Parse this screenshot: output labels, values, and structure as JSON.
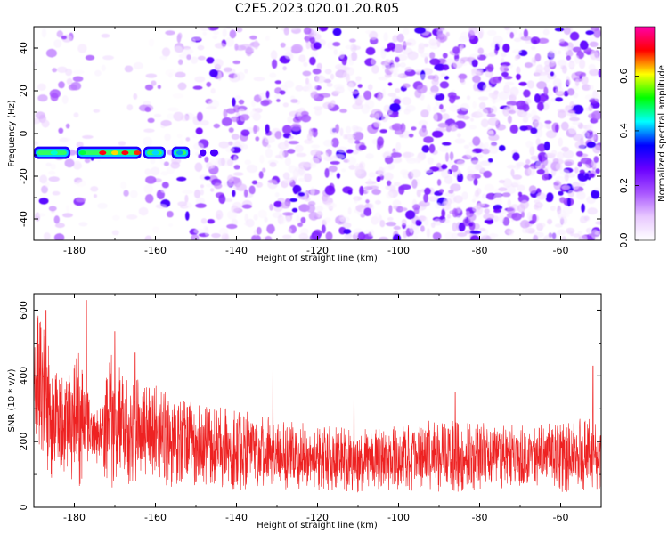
{
  "figure": {
    "title": "C2E5.2023.020.01.20.R05"
  },
  "chart_data": [
    {
      "type": "heatmap",
      "xlabel": "Height of straight line (km)",
      "ylabel": "Frequency (Hz)",
      "xlim": [
        -190,
        -50
      ],
      "ylim": [
        -50,
        50
      ],
      "xticks": [
        -180,
        -160,
        -140,
        -120,
        -100,
        -80,
        -60
      ],
      "yticks": [
        -40,
        -20,
        0,
        20,
        40
      ],
      "colorbar": {
        "label": "Normalized spectral amplitude",
        "range": [
          0.0,
          0.78
        ],
        "ticks": [
          0.0,
          0.2,
          0.4,
          0.6
        ],
        "colormap": [
          "#ffffff",
          "#e8c8ff",
          "#a855ff",
          "#6a00ff",
          "#0000ff",
          "#00ffff",
          "#00ff00",
          "#ffff00",
          "#ff0000",
          "#ff00aa"
        ]
      },
      "signal": {
        "x_range": [
          -190,
          -144
        ],
        "frequency": -9,
        "peak_amplitude": 0.7,
        "peak_x": [
          -172,
          -163
        ]
      },
      "background": {
        "quiet_x_range": [
          -178,
          -162
        ],
        "noise_amplitude": [
          0.02,
          0.3
        ]
      }
    },
    {
      "type": "line",
      "xlabel": "Height of straight line (km)",
      "ylabel": "SNR (10 * v/v)",
      "xlim": [
        -190,
        -50
      ],
      "ylim": [
        0,
        650
      ],
      "xticks": [
        -180,
        -160,
        -140,
        -120,
        -100,
        -80,
        -60
      ],
      "yticks": [
        0,
        200,
        400,
        600
      ],
      "series": [
        {
          "color": "#ee2222",
          "profile_x": [
            -190,
            -188,
            -185,
            -182,
            -179,
            -176,
            -174,
            -172,
            -170,
            -168,
            -166,
            -164,
            -160,
            -156,
            -150,
            -140,
            -130,
            -120,
            -110,
            -100,
            -90,
            -80,
            -70,
            -60,
            -50
          ],
          "profile_upper": [
            620,
            580,
            420,
            390,
            470,
            330,
            300,
            430,
            520,
            420,
            360,
            420,
            390,
            330,
            320,
            300,
            270,
            250,
            240,
            250,
            270,
            260,
            250,
            260,
            280
          ],
          "profile_lower": [
            260,
            120,
            60,
            120,
            40,
            150,
            130,
            40,
            60,
            90,
            50,
            90,
            70,
            60,
            55,
            50,
            55,
            50,
            45,
            50,
            45,
            50,
            55,
            45,
            50
          ],
          "spikes": [
            [
              -187,
              600
            ],
            [
              -177,
              630
            ],
            [
              -170,
              535
            ],
            [
              -165,
              470
            ],
            [
              -131,
              420
            ],
            [
              -111,
              430
            ],
            [
              -86,
              350
            ],
            [
              -52,
              430
            ]
          ]
        }
      ]
    }
  ]
}
